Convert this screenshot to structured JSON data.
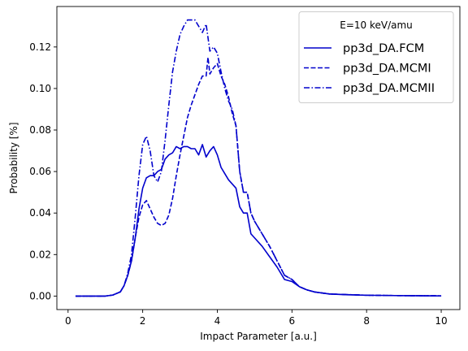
{
  "chart_data": {
    "type": "line",
    "title": "",
    "xlabel": "Impact Parameter [a.u.]",
    "ylabel": "Probability [%]",
    "xlim": [
      -0.3,
      10.5
    ],
    "ylim": [
      -0.0065,
      0.1395
    ],
    "xticks": [
      0,
      2,
      4,
      6,
      8,
      10
    ],
    "xtick_labels": [
      "0",
      "2",
      "4",
      "6",
      "8",
      "10"
    ],
    "yticks": [
      0.0,
      0.02,
      0.04,
      0.06,
      0.08,
      0.1,
      0.12
    ],
    "ytick_labels": [
      "0.00",
      "0.02",
      "0.04",
      "0.06",
      "0.08",
      "0.10",
      "0.12"
    ],
    "grid": false,
    "legend": {
      "title": "E=10 keV/amu",
      "position": "top-right"
    },
    "series": [
      {
        "name": "pp3d_DA.FCM",
        "color": "#0000cc",
        "dash": "solid",
        "points": [
          [
            0.2,
            0.0
          ],
          [
            1.0,
            0.0
          ],
          [
            1.2,
            0.0005
          ],
          [
            1.4,
            0.002
          ],
          [
            1.5,
            0.005
          ],
          [
            1.6,
            0.01
          ],
          [
            1.7,
            0.017
          ],
          [
            1.8,
            0.028
          ],
          [
            1.9,
            0.042
          ],
          [
            2.0,
            0.052
          ],
          [
            2.1,
            0.057
          ],
          [
            2.2,
            0.058
          ],
          [
            2.3,
            0.058
          ],
          [
            2.4,
            0.06
          ],
          [
            2.5,
            0.061
          ],
          [
            2.6,
            0.066
          ],
          [
            2.7,
            0.068
          ],
          [
            2.8,
            0.069
          ],
          [
            2.9,
            0.072
          ],
          [
            3.0,
            0.071
          ],
          [
            3.1,
            0.072
          ],
          [
            3.2,
            0.072
          ],
          [
            3.3,
            0.071
          ],
          [
            3.4,
            0.071
          ],
          [
            3.5,
            0.068
          ],
          [
            3.6,
            0.073
          ],
          [
            3.7,
            0.067
          ],
          [
            3.8,
            0.07
          ],
          [
            3.9,
            0.072
          ],
          [
            4.0,
            0.068
          ],
          [
            4.1,
            0.062
          ],
          [
            4.2,
            0.059
          ],
          [
            4.3,
            0.056
          ],
          [
            4.4,
            0.054
          ],
          [
            4.5,
            0.052
          ],
          [
            4.6,
            0.043
          ],
          [
            4.7,
            0.04
          ],
          [
            4.8,
            0.04
          ],
          [
            4.9,
            0.03
          ],
          [
            5.0,
            0.028
          ],
          [
            5.2,
            0.024
          ],
          [
            5.4,
            0.019
          ],
          [
            5.6,
            0.014
          ],
          [
            5.8,
            0.008
          ],
          [
            6.0,
            0.007
          ],
          [
            6.2,
            0.0045
          ],
          [
            6.4,
            0.003
          ],
          [
            6.6,
            0.002
          ],
          [
            6.8,
            0.0015
          ],
          [
            7.0,
            0.001
          ],
          [
            7.5,
            0.0006
          ],
          [
            8.0,
            0.0004
          ],
          [
            9.0,
            0.0002
          ],
          [
            10.0,
            0.0001
          ]
        ]
      },
      {
        "name": "pp3d_DA.MCMI",
        "color": "#0000cc",
        "dash": "dashed",
        "points": [
          [
            0.2,
            0.0
          ],
          [
            1.0,
            0.0
          ],
          [
            1.2,
            0.0005
          ],
          [
            1.4,
            0.002
          ],
          [
            1.5,
            0.005
          ],
          [
            1.6,
            0.01
          ],
          [
            1.7,
            0.017
          ],
          [
            1.8,
            0.028
          ],
          [
            1.9,
            0.038
          ],
          [
            2.0,
            0.044
          ],
          [
            2.1,
            0.046
          ],
          [
            2.2,
            0.042
          ],
          [
            2.3,
            0.038
          ],
          [
            2.4,
            0.035
          ],
          [
            2.5,
            0.034
          ],
          [
            2.6,
            0.035
          ],
          [
            2.7,
            0.039
          ],
          [
            2.8,
            0.047
          ],
          [
            2.9,
            0.058
          ],
          [
            3.0,
            0.068
          ],
          [
            3.1,
            0.077
          ],
          [
            3.2,
            0.086
          ],
          [
            3.3,
            0.092
          ],
          [
            3.4,
            0.097
          ],
          [
            3.5,
            0.102
          ],
          [
            3.6,
            0.106
          ],
          [
            3.7,
            0.106
          ],
          [
            3.75,
            0.115
          ],
          [
            3.8,
            0.107
          ],
          [
            3.9,
            0.11
          ],
          [
            4.0,
            0.112
          ],
          [
            4.1,
            0.106
          ],
          [
            4.2,
            0.102
          ],
          [
            4.3,
            0.096
          ],
          [
            4.4,
            0.088
          ],
          [
            4.5,
            0.082
          ],
          [
            4.6,
            0.06
          ],
          [
            4.7,
            0.05
          ],
          [
            4.8,
            0.05
          ],
          [
            4.9,
            0.04
          ],
          [
            5.0,
            0.036
          ],
          [
            5.2,
            0.03
          ],
          [
            5.4,
            0.024
          ],
          [
            5.6,
            0.017
          ],
          [
            5.8,
            0.01
          ],
          [
            6.0,
            0.008
          ],
          [
            6.2,
            0.0045
          ],
          [
            6.4,
            0.003
          ],
          [
            6.6,
            0.002
          ],
          [
            6.8,
            0.0015
          ],
          [
            7.0,
            0.001
          ],
          [
            7.5,
            0.0007
          ],
          [
            8.0,
            0.0004
          ],
          [
            9.0,
            0.0002
          ],
          [
            10.0,
            0.0001
          ]
        ]
      },
      {
        "name": "pp3d_DA.MCMII",
        "color": "#0000cc",
        "dash": "dashdot",
        "points": [
          [
            0.2,
            0.0
          ],
          [
            1.0,
            0.0
          ],
          [
            1.2,
            0.0005
          ],
          [
            1.4,
            0.002
          ],
          [
            1.5,
            0.005
          ],
          [
            1.6,
            0.011
          ],
          [
            1.7,
            0.02
          ],
          [
            1.8,
            0.038
          ],
          [
            1.9,
            0.058
          ],
          [
            2.0,
            0.073
          ],
          [
            2.1,
            0.077
          ],
          [
            2.2,
            0.07
          ],
          [
            2.3,
            0.058
          ],
          [
            2.4,
            0.055
          ],
          [
            2.5,
            0.06
          ],
          [
            2.6,
            0.075
          ],
          [
            2.7,
            0.092
          ],
          [
            2.8,
            0.108
          ],
          [
            2.9,
            0.118
          ],
          [
            3.0,
            0.126
          ],
          [
            3.1,
            0.13
          ],
          [
            3.2,
            0.133
          ],
          [
            3.3,
            0.133
          ],
          [
            3.4,
            0.133
          ],
          [
            3.5,
            0.13
          ],
          [
            3.6,
            0.127
          ],
          [
            3.7,
            0.131
          ],
          [
            3.8,
            0.118
          ],
          [
            3.9,
            0.12
          ],
          [
            4.0,
            0.117
          ],
          [
            4.1,
            0.108
          ],
          [
            4.2,
            0.1
          ],
          [
            4.3,
            0.094
          ],
          [
            4.4,
            0.09
          ],
          [
            4.5,
            0.082
          ],
          [
            4.6,
            0.06
          ],
          [
            4.7,
            0.05
          ],
          [
            4.8,
            0.05
          ],
          [
            4.9,
            0.04
          ],
          [
            5.0,
            0.036
          ],
          [
            5.2,
            0.03
          ],
          [
            5.4,
            0.024
          ],
          [
            5.6,
            0.017
          ],
          [
            5.8,
            0.01
          ],
          [
            6.0,
            0.008
          ],
          [
            6.2,
            0.0045
          ],
          [
            6.4,
            0.003
          ],
          [
            6.6,
            0.002
          ],
          [
            6.8,
            0.0015
          ],
          [
            7.0,
            0.001
          ],
          [
            7.5,
            0.0007
          ],
          [
            8.0,
            0.0004
          ],
          [
            9.0,
            0.0002
          ],
          [
            10.0,
            0.0001
          ]
        ]
      }
    ]
  }
}
